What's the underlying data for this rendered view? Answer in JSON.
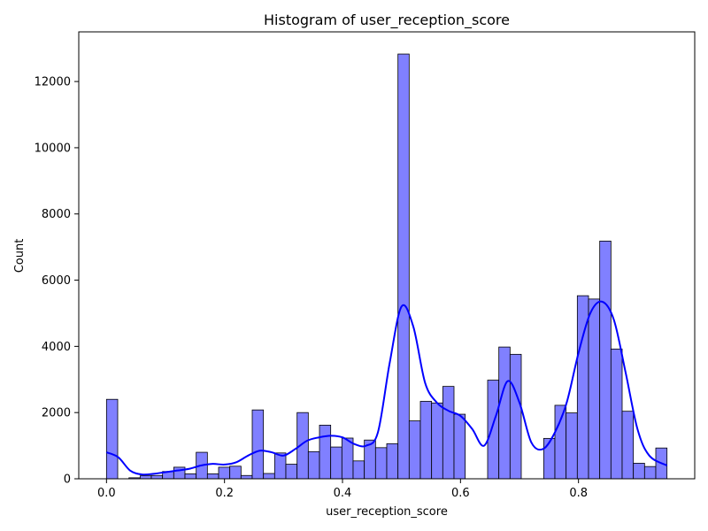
{
  "chart_data": {
    "type": "bar",
    "title": "Histogram of user_reception_score",
    "xlabel": "user_reception_score",
    "ylabel": "Count",
    "xlim": [
      -0.047,
      0.997
    ],
    "ylim": [
      0,
      13500
    ],
    "xticks": [
      0.0,
      0.2,
      0.4,
      0.6,
      0.8
    ],
    "xtick_labels": [
      "0.0",
      "0.2",
      "0.4",
      "0.6",
      "0.8"
    ],
    "yticks": [
      0,
      2000,
      4000,
      6000,
      8000,
      10000,
      12000
    ],
    "ytick_labels": [
      "0",
      "2000",
      "4000",
      "6000",
      "8000",
      "10000",
      "12000"
    ],
    "grid": false,
    "bin_start": 0.0,
    "bin_width": 0.019,
    "values": [
      2400,
      0,
      30,
      90,
      100,
      220,
      350,
      150,
      800,
      150,
      350,
      380,
      100,
      2080,
      160,
      780,
      440,
      2000,
      820,
      1620,
      960,
      1230,
      540,
      1170,
      940,
      1060,
      12830,
      1750,
      2340,
      2290,
      2790,
      1950,
      0,
      0,
      2980,
      3980,
      3760,
      0,
      0,
      1220,
      2220,
      1990,
      5530,
      5430,
      7180,
      3920,
      2040,
      470,
      370,
      930
    ],
    "kde": {
      "x": [
        0.0,
        0.02,
        0.04,
        0.06,
        0.08,
        0.1,
        0.12,
        0.14,
        0.16,
        0.18,
        0.2,
        0.22,
        0.24,
        0.26,
        0.28,
        0.3,
        0.32,
        0.34,
        0.36,
        0.38,
        0.4,
        0.42,
        0.44,
        0.46,
        0.48,
        0.5,
        0.52,
        0.54,
        0.56,
        0.58,
        0.6,
        0.62,
        0.64,
        0.66,
        0.68,
        0.7,
        0.72,
        0.74,
        0.76,
        0.78,
        0.8,
        0.82,
        0.84,
        0.86,
        0.88,
        0.9,
        0.92,
        0.95
      ],
      "y": [
        800,
        650,
        250,
        130,
        150,
        200,
        250,
        300,
        400,
        450,
        430,
        500,
        700,
        850,
        800,
        700,
        900,
        1150,
        1250,
        1300,
        1250,
        1050,
        1000,
        1400,
        3500,
        5200,
        4600,
        2900,
        2300,
        2050,
        1900,
        1500,
        1000,
        1900,
        2950,
        2300,
        1100,
        900,
        1400,
        2300,
        3800,
        5000,
        5350,
        4800,
        3200,
        1500,
        700,
        400
      ]
    },
    "colors": {
      "bar_fill": "#8080ff",
      "bar_edge": "#000000",
      "kde_line": "#0000ff"
    }
  }
}
